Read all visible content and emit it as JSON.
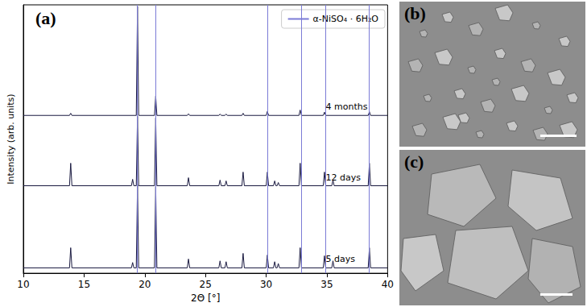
{
  "panel_label": "(a)",
  "chart_data": {
    "type": "line",
    "xlabel": "2Θ [°]",
    "ylabel": "Intensity (arb. units)",
    "xlim": [
      10,
      40
    ],
    "xticks": [
      10,
      15,
      20,
      25,
      30,
      35,
      40
    ],
    "ylim": [
      0,
      100
    ],
    "tick_labels": "x",
    "legend": "upper right",
    "series": [
      {
        "name": "α-NiSO₄ · 6H₂O",
        "type": "vertical_lines",
        "color": "#7b7bd6",
        "x": [
          19.4,
          20.9,
          30.1,
          32.9,
          34.9,
          38.5
        ]
      },
      {
        "name": "4 months",
        "color": "#1a1a40",
        "x": [
          10,
          13.8,
          13.9,
          14.0,
          19.3,
          19.4,
          19.5,
          20.8,
          20.9,
          21.0,
          23.5,
          23.6,
          23.7,
          26.1,
          26.2,
          26.3,
          26.6,
          26.7,
          26.8,
          28.0,
          28.1,
          28.2,
          30.0,
          30.1,
          30.2,
          32.7,
          32.8,
          32.9,
          34.7,
          34.8,
          34.9,
          38.4,
          38.5,
          38.6,
          40
        ],
        "values": [
          58.8,
          58.8,
          59.6,
          58.8,
          58.8,
          99.4,
          58.8,
          58.8,
          66,
          58.8,
          58.8,
          59.4,
          58.8,
          58.8,
          59.3,
          58.8,
          58.8,
          59.3,
          58.8,
          58.8,
          59.6,
          58.8,
          58.8,
          60.3,
          58.8,
          58.8,
          60.8,
          58.8,
          58.8,
          60,
          58.8,
          58.8,
          60.2,
          58.8,
          58.8
        ]
      },
      {
        "name": "12 days",
        "color": "#1a1a40",
        "x": [
          10,
          13.8,
          13.9,
          14.0,
          18.9,
          19.0,
          19.1,
          19.3,
          19.4,
          19.5,
          20.8,
          20.9,
          21.0,
          23.5,
          23.6,
          23.7,
          26.1,
          26.2,
          26.3,
          26.6,
          26.7,
          26.8,
          28.0,
          28.1,
          28.2,
          30.0,
          30.1,
          30.2,
          30.6,
          30.7,
          30.8,
          30.9,
          31.0,
          31.1,
          32.7,
          32.8,
          32.9,
          34.7,
          34.8,
          34.9,
          35.4,
          35.5,
          35.6,
          38.4,
          38.5,
          38.6,
          40
        ],
        "values": [
          32.6,
          32.6,
          41,
          32.6,
          32.6,
          35,
          32.6,
          32.6,
          58.5,
          32.6,
          32.6,
          57.9,
          32.6,
          32.6,
          35.6,
          32.6,
          32.6,
          34.7,
          32.6,
          32.6,
          34.4,
          32.6,
          32.6,
          37.7,
          32.6,
          32.6,
          37.7,
          32.6,
          32.6,
          34.4,
          32.6,
          32.6,
          33.8,
          32.6,
          32.6,
          41,
          32.6,
          32.6,
          37.7,
          32.6,
          32.6,
          34.7,
          32.6,
          32.6,
          41,
          32.6,
          32.6
        ]
      },
      {
        "name": "5 days",
        "color": "#1a1a40",
        "x": [
          10,
          13.8,
          13.9,
          14.0,
          18.9,
          19.0,
          19.1,
          19.3,
          19.4,
          19.5,
          20.8,
          20.9,
          21.0,
          23.5,
          23.6,
          23.7,
          26.1,
          26.2,
          26.3,
          26.6,
          26.7,
          26.8,
          28.0,
          28.1,
          28.2,
          30.0,
          30.1,
          30.2,
          30.6,
          30.7,
          30.8,
          30.9,
          31.0,
          31.1,
          32.7,
          32.8,
          32.9,
          34.7,
          34.8,
          34.9,
          35.4,
          35.5,
          35.6,
          38.4,
          38.5,
          38.6,
          40
        ],
        "values": [
          2,
          2,
          9.5,
          2,
          2,
          4,
          2,
          2,
          32.9,
          2,
          2,
          32.3,
          2,
          2,
          5.3,
          2,
          2,
          4.6,
          2,
          2,
          4.3,
          2,
          2,
          7.4,
          2,
          2,
          6.8,
          2,
          2,
          4.3,
          2,
          2,
          3.6,
          2,
          2,
          9.5,
          2,
          2,
          6.5,
          2,
          2,
          4.6,
          2,
          2,
          9.5,
          2,
          2
        ]
      }
    ]
  },
  "images": [
    {
      "panel_label": "(b)"
    },
    {
      "panel_label": "(c)"
    }
  ]
}
